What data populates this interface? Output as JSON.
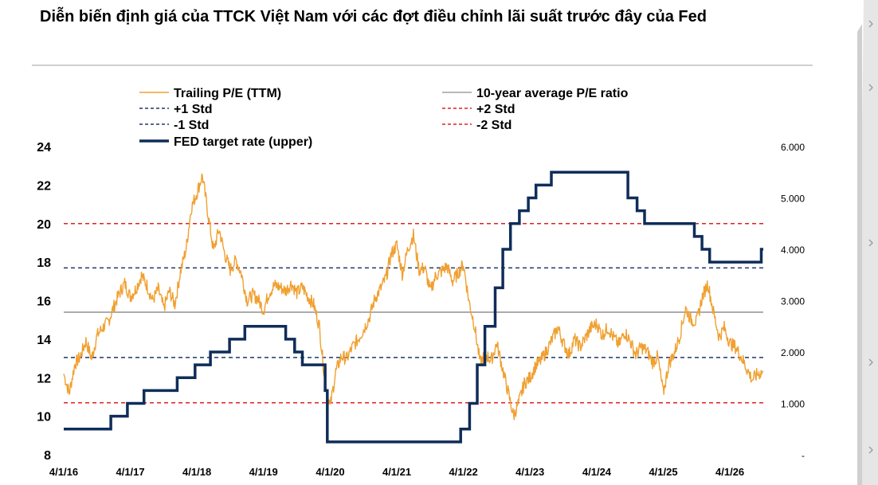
{
  "title": "Diễn biến định giá của TTCK Việt Nam với các đợt điều chỉnh lãi suất trước đây của Fed",
  "colors": {
    "pe": "#F0A030",
    "avg": "#A0A0A0",
    "std1": "#1F3864",
    "std2": "#E02020",
    "fed": "#0F2D5A"
  },
  "side_arrow_icons": [
    "chevron-right-icon",
    "chevron-right-icon",
    "chevron-right-icon",
    "chevron-right-icon",
    "chevron-right-icon"
  ],
  "chart_data": {
    "type": "line",
    "legend_placement": "top",
    "legend": [
      {
        "key": "pe",
        "label": "Trailing P/E (TTM)",
        "style": "solid-thin"
      },
      {
        "key": "avg",
        "label": "10-year average P/E ratio",
        "style": "solid-thin"
      },
      {
        "key": "std1_plus",
        "label": "+1 Std",
        "style": "dashed"
      },
      {
        "key": "std2_plus",
        "label": "+2 Std",
        "style": "dashed"
      },
      {
        "key": "std1_minus",
        "label": "-1 Std",
        "style": "dashed"
      },
      {
        "key": "std2_minus",
        "label": "-2 Std",
        "style": "dashed"
      },
      {
        "key": "fed",
        "label": "FED target rate (upper)",
        "style": "solid-thick"
      }
    ],
    "x_tick_labels": [
      "4/1/16",
      "4/1/17",
      "4/1/18",
      "4/1/19",
      "4/1/20",
      "4/1/21",
      "4/1/22",
      "4/1/23",
      "4/1/24",
      "4/1/25",
      "4/1/26"
    ],
    "x_range": [
      "2016-04-01",
      "2026-10-01"
    ],
    "y_left": {
      "ticks": [
        "8",
        "10",
        "12",
        "14",
        "16",
        "18",
        "20",
        "22",
        "24"
      ],
      "range": [
        8,
        24
      ]
    },
    "y_right": {
      "ticks": [
        "-",
        "1.000",
        "2.000",
        "3.000",
        "4.000",
        "5.000",
        "6.000"
      ],
      "range": [
        0,
        6
      ]
    },
    "reference_lines": {
      "avg": 15.4,
      "std1_plus": 17.7,
      "std1_minus": 13.05,
      "std2_plus": 20.0,
      "std2_minus": 10.7
    },
    "pe_series": {
      "name": "Trailing P/E (TTM)",
      "points": [
        [
          "2016-04-01",
          12.2
        ],
        [
          "2016-05-01",
          11.2
        ],
        [
          "2016-06-01",
          12.7
        ],
        [
          "2016-07-01",
          13.1
        ],
        [
          "2016-08-01",
          13.9
        ],
        [
          "2016-09-01",
          13.0
        ],
        [
          "2016-10-01",
          14.2
        ],
        [
          "2016-11-01",
          14.6
        ],
        [
          "2016-12-01",
          14.9
        ],
        [
          "2017-01-01",
          15.7
        ],
        [
          "2017-02-01",
          16.4
        ],
        [
          "2017-03-01",
          16.9
        ],
        [
          "2017-04-01",
          16.2
        ],
        [
          "2017-05-01",
          16.6
        ],
        [
          "2017-06-01",
          17.3
        ],
        [
          "2017-07-01",
          16.8
        ],
        [
          "2017-08-01",
          16.0
        ],
        [
          "2017-09-01",
          16.6
        ],
        [
          "2017-10-01",
          15.6
        ],
        [
          "2017-11-01",
          16.5
        ],
        [
          "2017-12-01",
          15.8
        ],
        [
          "2018-01-01",
          17.5
        ],
        [
          "2018-02-01",
          18.7
        ],
        [
          "2018-03-01",
          20.8
        ],
        [
          "2018-04-01",
          21.6
        ],
        [
          "2018-05-01",
          22.5
        ],
        [
          "2018-06-01",
          20.5
        ],
        [
          "2018-07-01",
          18.6
        ],
        [
          "2018-08-01",
          19.7
        ],
        [
          "2018-09-01",
          18.4
        ],
        [
          "2018-10-01",
          17.6
        ],
        [
          "2018-11-01",
          18.1
        ],
        [
          "2018-12-01",
          17.4
        ],
        [
          "2019-01-01",
          16.0
        ],
        [
          "2019-02-01",
          16.3
        ],
        [
          "2019-03-01",
          16.1
        ],
        [
          "2019-04-01",
          15.5
        ],
        [
          "2019-05-01",
          16.4
        ],
        [
          "2019-06-01",
          16.8
        ],
        [
          "2019-07-01",
          16.7
        ],
        [
          "2019-08-01",
          16.5
        ],
        [
          "2019-09-01",
          16.9
        ],
        [
          "2019-10-01",
          16.4
        ],
        [
          "2019-11-01",
          16.7
        ],
        [
          "2019-12-01",
          16.2
        ],
        [
          "2020-01-01",
          15.8
        ],
        [
          "2020-02-01",
          14.7
        ],
        [
          "2020-03-01",
          12.0
        ],
        [
          "2020-04-01",
          10.5
        ],
        [
          "2020-05-01",
          12.3
        ],
        [
          "2020-06-01",
          13.1
        ],
        [
          "2020-07-01",
          13.0
        ],
        [
          "2020-08-01",
          13.6
        ],
        [
          "2020-09-01",
          14.0
        ],
        [
          "2020-10-01",
          14.5
        ],
        [
          "2020-11-01",
          15.1
        ],
        [
          "2020-12-01",
          16.1
        ],
        [
          "2021-01-01",
          16.6
        ],
        [
          "2021-02-01",
          17.2
        ],
        [
          "2021-03-01",
          18.4
        ],
        [
          "2021-04-01",
          18.9
        ],
        [
          "2021-05-01",
          17.4
        ],
        [
          "2021-06-01",
          18.7
        ],
        [
          "2021-07-01",
          19.4
        ],
        [
          "2021-08-01",
          17.6
        ],
        [
          "2021-09-01",
          17.7
        ],
        [
          "2021-10-01",
          16.5
        ],
        [
          "2021-11-01",
          17.3
        ],
        [
          "2021-12-01",
          17.5
        ],
        [
          "2022-01-01",
          17.8
        ],
        [
          "2022-02-01",
          17.0
        ],
        [
          "2022-03-01",
          17.4
        ],
        [
          "2022-04-01",
          17.9
        ],
        [
          "2022-05-01",
          16.0
        ],
        [
          "2022-06-01",
          14.7
        ],
        [
          "2022-07-01",
          12.8
        ],
        [
          "2022-08-01",
          13.2
        ],
        [
          "2022-09-01",
          12.9
        ],
        [
          "2022-10-01",
          13.8
        ],
        [
          "2022-11-01",
          12.5
        ],
        [
          "2022-12-01",
          11.3
        ],
        [
          "2023-01-01",
          10.0
        ],
        [
          "2023-02-01",
          10.8
        ],
        [
          "2023-03-01",
          11.7
        ],
        [
          "2023-04-01",
          12.0
        ],
        [
          "2023-05-01",
          12.6
        ],
        [
          "2023-06-01",
          12.9
        ],
        [
          "2023-07-01",
          13.4
        ],
        [
          "2023-08-01",
          14.0
        ],
        [
          "2023-09-01",
          14.6
        ],
        [
          "2023-10-01",
          13.8
        ],
        [
          "2023-11-01",
          13.2
        ],
        [
          "2023-12-01",
          14.0
        ],
        [
          "2024-01-01",
          13.6
        ],
        [
          "2024-02-01",
          14.1
        ],
        [
          "2024-03-01",
          14.6
        ],
        [
          "2024-04-01",
          14.8
        ],
        [
          "2024-05-01",
          14.2
        ],
        [
          "2024-06-01",
          14.6
        ],
        [
          "2024-07-01",
          14.1
        ],
        [
          "2024-08-01",
          13.7
        ],
        [
          "2024-09-01",
          14.4
        ],
        [
          "2024-10-01",
          13.9
        ],
        [
          "2024-11-01",
          13.2
        ],
        [
          "2024-12-01",
          13.6
        ],
        [
          "2025-01-01",
          13.4
        ],
        [
          "2025-02-01",
          12.8
        ],
        [
          "2025-03-01",
          13.1
        ],
        [
          "2025-04-01",
          11.2
        ],
        [
          "2025-05-01",
          12.7
        ],
        [
          "2025-06-01",
          13.3
        ],
        [
          "2025-07-01",
          14.2
        ],
        [
          "2025-08-01",
          15.6
        ],
        [
          "2025-09-01",
          15.0
        ],
        [
          "2025-10-01",
          14.9
        ],
        [
          "2025-11-01",
          16.2
        ],
        [
          "2025-12-01",
          16.9
        ],
        [
          "2026-01-01",
          15.4
        ],
        [
          "2026-02-01",
          14.1
        ],
        [
          "2026-03-01",
          14.6
        ],
        [
          "2026-04-01",
          13.8
        ],
        [
          "2026-05-01",
          13.6
        ],
        [
          "2026-06-01",
          13.1
        ],
        [
          "2026-07-01",
          12.5
        ],
        [
          "2026-08-01",
          11.9
        ],
        [
          "2026-09-01",
          12.2
        ],
        [
          "2026-10-01",
          12.3
        ]
      ]
    },
    "fed_series": {
      "name": "FED target rate (upper)",
      "axis": "right",
      "steps": [
        [
          "2016-04-01",
          0.5
        ],
        [
          "2016-12-15",
          0.75
        ],
        [
          "2017-03-16",
          1.0
        ],
        [
          "2017-06-15",
          1.25
        ],
        [
          "2017-12-14",
          1.5
        ],
        [
          "2018-03-22",
          1.75
        ],
        [
          "2018-06-14",
          2.0
        ],
        [
          "2018-09-27",
          2.25
        ],
        [
          "2018-12-20",
          2.5
        ],
        [
          "2019-08-01",
          2.25
        ],
        [
          "2019-09-19",
          2.0
        ],
        [
          "2019-10-31",
          1.75
        ],
        [
          "2020-03-04",
          1.25
        ],
        [
          "2020-03-16",
          0.25
        ],
        [
          "2022-03-17",
          0.5
        ],
        [
          "2022-05-05",
          1.0
        ],
        [
          "2022-06-16",
          1.75
        ],
        [
          "2022-07-28",
          2.5
        ],
        [
          "2022-09-22",
          3.25
        ],
        [
          "2022-11-03",
          4.0
        ],
        [
          "2022-12-15",
          4.5
        ],
        [
          "2023-02-02",
          4.75
        ],
        [
          "2023-03-23",
          5.0
        ],
        [
          "2023-05-04",
          5.25
        ],
        [
          "2023-07-27",
          5.5
        ],
        [
          "2024-09-19",
          5.0
        ],
        [
          "2024-11-08",
          4.75
        ],
        [
          "2024-12-19",
          4.5
        ],
        [
          "2025-09-18",
          4.25
        ],
        [
          "2025-10-30",
          4.0
        ],
        [
          "2025-12-11",
          3.75
        ],
        [
          "2026-09-20",
          4.0
        ]
      ],
      "end": "2026-10-01"
    }
  }
}
